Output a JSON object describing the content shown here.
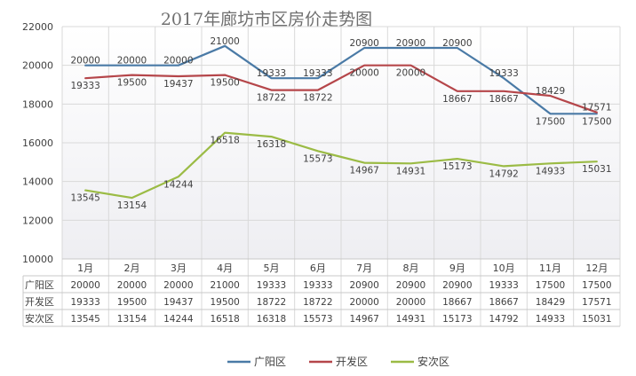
{
  "chart_data": {
    "type": "line",
    "title": "2017年廊坊市区房价走势图",
    "categories": [
      "1月",
      "2月",
      "3月",
      "4月",
      "5月",
      "6月",
      "7月",
      "8月",
      "9月",
      "10月",
      "11月",
      "12月"
    ],
    "ylim": [
      10000,
      22000
    ],
    "yticks": [
      10000,
      12000,
      14000,
      16000,
      18000,
      20000,
      22000
    ],
    "grid": true,
    "legend_position": "bottom",
    "data_table": true,
    "series": [
      {
        "name": "广阳区",
        "color": "#4a7aa6",
        "values": [
          20000,
          20000,
          20000,
          21000,
          19333,
          19333,
          20900,
          20900,
          20900,
          19333,
          17500,
          17500
        ]
      },
      {
        "name": "开发区",
        "color": "#b5464a",
        "values": [
          19333,
          19500,
          19437,
          19500,
          18722,
          18722,
          20000,
          20000,
          18667,
          18667,
          18429,
          17571
        ]
      },
      {
        "name": "安次区",
        "color": "#9bbb45",
        "values": [
          13545,
          13154,
          14244,
          16518,
          16318,
          15573,
          14967,
          14931,
          15173,
          14792,
          14933,
          15031
        ]
      }
    ]
  }
}
